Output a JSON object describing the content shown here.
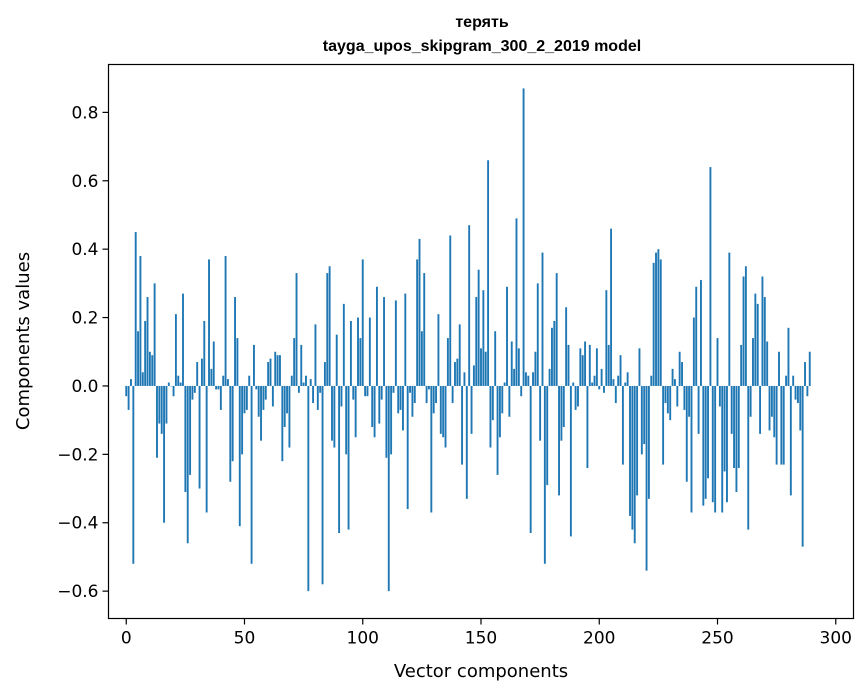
{
  "chart_data": {
    "type": "bar",
    "title": "терять",
    "subtitle": "tayga_upos_skipgram_300_2_2019 model",
    "xlabel": "Vector components",
    "ylabel": "Components values",
    "xlim": [
      -7.5,
      307.5
    ],
    "ylim": [
      -0.68,
      0.94
    ],
    "xticks": [
      0,
      50,
      100,
      150,
      200,
      250,
      300
    ],
    "yticks": [
      -0.6,
      -0.4,
      -0.2,
      0.0,
      0.2,
      0.4,
      0.6,
      0.8
    ],
    "ytick_labels": [
      "−0.6",
      "−0.4",
      "−0.2",
      "0.0",
      "0.2",
      "0.4",
      "0.6",
      "0.8"
    ],
    "bar_color": "#1f77b4",
    "values": [
      -0.03,
      -0.07,
      0.02,
      -0.52,
      0.45,
      0.16,
      0.38,
      0.04,
      0.19,
      0.26,
      0.1,
      0.09,
      0.3,
      -0.21,
      -0.11,
      -0.14,
      -0.4,
      -0.11,
      0.01,
      0.0,
      -0.03,
      0.21,
      0.03,
      0.01,
      0.27,
      -0.31,
      -0.46,
      -0.26,
      -0.04,
      -0.02,
      0.07,
      -0.3,
      0.08,
      0.19,
      -0.37,
      0.37,
      0.05,
      0.13,
      -0.01,
      -0.01,
      -0.07,
      0.03,
      0.38,
      0.02,
      -0.28,
      -0.22,
      0.26,
      0.14,
      -0.41,
      -0.2,
      -0.08,
      -0.07,
      0.03,
      -0.52,
      0.12,
      -0.01,
      -0.09,
      -0.16,
      -0.07,
      -0.04,
      0.07,
      0.08,
      -0.06,
      0.1,
      0.09,
      0.09,
      -0.22,
      -0.12,
      -0.08,
      -0.18,
      0.03,
      0.14,
      0.33,
      -0.02,
      0.12,
      0.01,
      0.03,
      -0.6,
      0.02,
      -0.05,
      0.18,
      -0.07,
      -0.02,
      -0.58,
      0.07,
      0.33,
      0.35,
      -0.16,
      -0.18,
      0.15,
      -0.43,
      -0.06,
      0.24,
      -0.2,
      -0.42,
      0.19,
      -0.04,
      -0.15,
      0.2,
      0.14,
      0.37,
      -0.03,
      -0.03,
      0.2,
      -0.12,
      -0.15,
      0.29,
      -0.11,
      -0.04,
      0.26,
      -0.21,
      -0.6,
      -0.2,
      -0.02,
      0.25,
      -0.08,
      -0.07,
      -0.13,
      0.27,
      -0.36,
      -0.02,
      -0.09,
      -0.05,
      0.37,
      0.43,
      0.16,
      0.33,
      -0.05,
      -0.01,
      -0.37,
      -0.08,
      -0.05,
      0.21,
      -0.14,
      -0.15,
      -0.18,
      0.14,
      0.44,
      -0.05,
      0.07,
      0.08,
      0.18,
      -0.23,
      0.04,
      -0.33,
      0.47,
      -0.14,
      0.06,
      0.26,
      0.34,
      0.11,
      0.28,
      0.1,
      0.66,
      -0.18,
      -0.1,
      0.16,
      -0.26,
      -0.15,
      -0.08,
      0.01,
      0.29,
      -0.09,
      0.13,
      0.05,
      0.49,
      0.11,
      -0.03,
      0.87,
      0.04,
      0.03,
      -0.43,
      0.04,
      0.1,
      0.3,
      -0.16,
      0.39,
      -0.52,
      -0.29,
      0.05,
      0.17,
      0.19,
      0.33,
      -0.32,
      -0.16,
      -0.12,
      0.23,
      0.12,
      -0.44,
      0.01,
      -0.07,
      -0.06,
      0.11,
      0.09,
      0.13,
      -0.24,
      0.12,
      0.01,
      0.03,
      0.11,
      -0.01,
      0.05,
      -0.02,
      0.28,
      0.12,
      0.46,
      0.02,
      -0.05,
      0.03,
      0.09,
      -0.23,
      0.01,
      0.04,
      -0.38,
      -0.42,
      -0.46,
      -0.32,
      0.11,
      -0.2,
      -0.17,
      -0.54,
      -0.33,
      0.03,
      0.36,
      0.39,
      0.4,
      0.37,
      -0.23,
      -0.05,
      -0.08,
      -0.1,
      0.05,
      0.02,
      -0.06,
      0.1,
      0.07,
      -0.07,
      -0.28,
      -0.09,
      -0.37,
      0.2,
      0.29,
      -0.14,
      0.31,
      -0.35,
      -0.33,
      -0.27,
      0.64,
      -0.34,
      -0.37,
      0.14,
      -0.06,
      -0.37,
      -0.25,
      -0.34,
      0.39,
      -0.14,
      -0.24,
      -0.31,
      -0.24,
      0.12,
      0.32,
      0.35,
      -0.42,
      -0.09,
      0.14,
      0.27,
      0.24,
      -0.14,
      0.32,
      0.26,
      0.13,
      -0.13,
      -0.09,
      -0.15,
      -0.23,
      0.1,
      -0.23,
      -0.23,
      0.03,
      0.17,
      -0.32,
      0.03,
      -0.04,
      -0.05,
      -0.13,
      -0.47,
      0.07,
      -0.03,
      0.1
    ]
  }
}
